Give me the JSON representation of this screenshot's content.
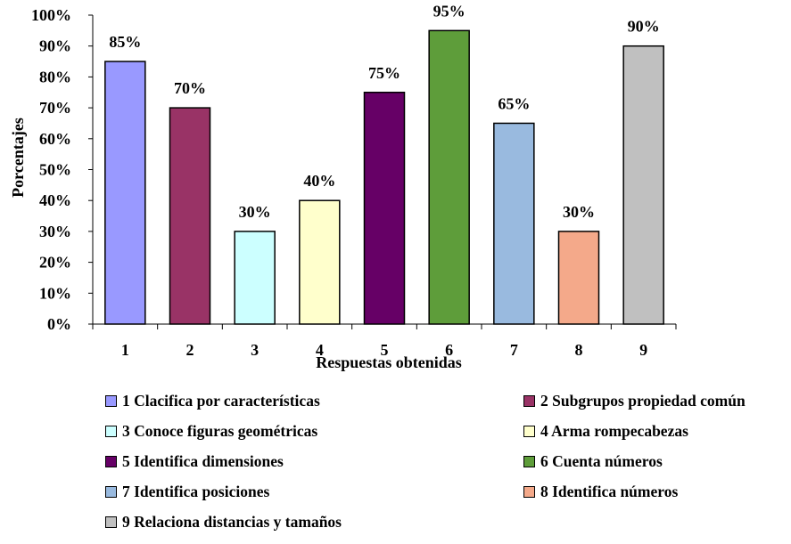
{
  "chart_data": {
    "type": "bar",
    "categories": [
      "1",
      "2",
      "3",
      "4",
      "5",
      "6",
      "7",
      "8",
      "9"
    ],
    "values": [
      85,
      70,
      30,
      40,
      75,
      95,
      65,
      30,
      90
    ],
    "data_labels": [
      "85%",
      "70%",
      "30%",
      "40%",
      "75%",
      "95%",
      "65%",
      "30%",
      "90%"
    ],
    "colors": [
      "#9999FF",
      "#993366",
      "#CCFFFF",
      "#FFFFCC",
      "#660066",
      "#5E9D3A",
      "#99BADF",
      "#F4A98A",
      "#C0C0C0"
    ],
    "ylim": [
      0,
      100
    ],
    "yticks": [
      "0%",
      "10%",
      "20%",
      "30%",
      "40%",
      "50%",
      "60%",
      "70%",
      "80%",
      "90%",
      "100%"
    ],
    "ylabel": "Porcentajes",
    "xlabel": "Respuestas obtenidas",
    "grid": false,
    "legend_position": "bottom",
    "legend": [
      "1 Clacifica por características",
      "2 Subgrupos propiedad común",
      "3 Conoce figuras geométricas",
      "4 Arma rompecabezas",
      "5 Identifica dimensiones",
      "6 Cuenta números",
      "7 Identifica posiciones",
      "8 Identifica números",
      "9 Relaciona distancias y tamaños"
    ]
  }
}
